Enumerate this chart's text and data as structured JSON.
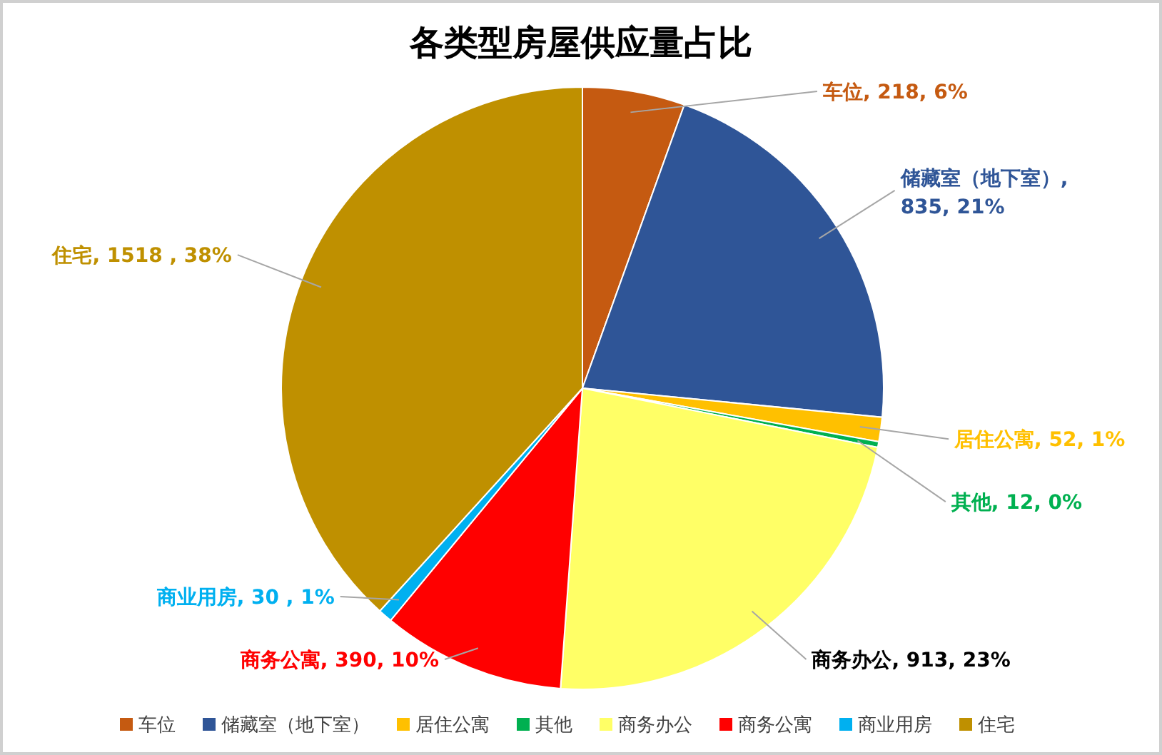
{
  "chart_data": {
    "type": "pie",
    "title": "各类型房屋供应量占比",
    "categories": [
      "车位",
      "储藏室（地下室）",
      "居住公寓",
      "其他",
      "商务办公",
      "商务公寓",
      "商业用房",
      "住宅"
    ],
    "values": [
      218,
      835,
      52,
      12,
      913,
      390,
      30,
      1518
    ],
    "colors": [
      "#c55a11",
      "#2f5597",
      "#ffc000",
      "#00b050",
      "#ffff66",
      "#ff0000",
      "#00b0f0",
      "#bf9000"
    ],
    "value_labels": [
      "车位, 218, 6%",
      "储藏室（地下室）, 835, 21%",
      "居住公寓, 52, 1%",
      "其他, 12, 0%",
      "商务办公, 913, 23%",
      "商务公寓, 390, 10%",
      "商业用房, 30 , 1%",
      "住宅, 1518 , 38%"
    ],
    "legend": "bottom"
  }
}
